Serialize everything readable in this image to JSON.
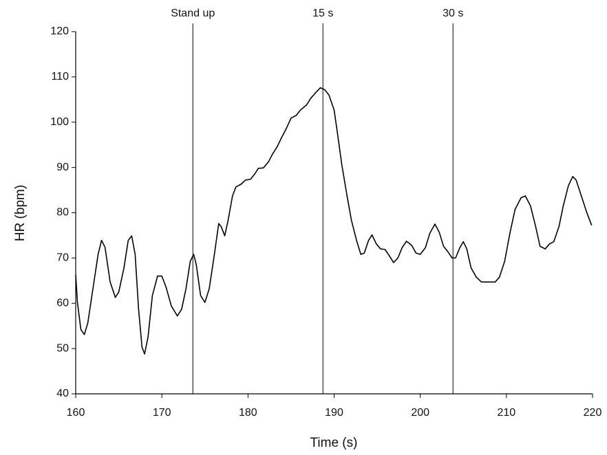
{
  "chart_data": {
    "type": "line",
    "x_label": "Time (s)",
    "y_label": "HR (bpm)",
    "xlim": [
      160,
      220
    ],
    "xticks": [
      160,
      170,
      180,
      190,
      200,
      210,
      220
    ],
    "ylim": [
      40,
      120
    ],
    "yticks": [
      40,
      50,
      60,
      70,
      80,
      90,
      100,
      110,
      120
    ],
    "grid": false,
    "annotations": [
      {
        "label": "Stand up",
        "x": 173.6
      },
      {
        "label": "15 s",
        "x": 188.7
      },
      {
        "label": "30 s",
        "x": 203.8
      }
    ],
    "series": [
      {
        "color": "#000000",
        "x": [
          160,
          160.2,
          160.6,
          161,
          161.4,
          162,
          162.6,
          163.0,
          163.4,
          164,
          164.6,
          165,
          165.6,
          166.1,
          166.5,
          166.9,
          167.3,
          167.7,
          168,
          168.4,
          168.9,
          169.5,
          170,
          170.5,
          171.1,
          171.8,
          172.3,
          172.8,
          173.3,
          173.7,
          174,
          174.5,
          175,
          175.5,
          176.1,
          176.6,
          176.9,
          177.3,
          177.7,
          178.2,
          178.6,
          179.2,
          179.7,
          180.3,
          180.8,
          181.2,
          181.8,
          182.4,
          182.8,
          183.4,
          183.9,
          184.4,
          185,
          185.6,
          186.1,
          186.8,
          187.3,
          187.9,
          188.4,
          188.9,
          189.4,
          190,
          190.4,
          190.9,
          191.5,
          192,
          192.6,
          193.1,
          193.5,
          194,
          194.4,
          194.9,
          195.4,
          195.9,
          196.3,
          196.9,
          197.4,
          197.9,
          198.4,
          199,
          199.5,
          200,
          200.6,
          201.1,
          201.7,
          202.2,
          202.7,
          203.2,
          203.7,
          204.1,
          204.6,
          205.0,
          205.4,
          205.9,
          206.5,
          207.1,
          207.9,
          208.7,
          209.2,
          209.8,
          210.4,
          211.0,
          211.7,
          212.2,
          212.8,
          213.4,
          213.9,
          214.5,
          215.0,
          215.5,
          216.1,
          216.6,
          217.2,
          217.7,
          218.1,
          218.7,
          219.3,
          219.9
        ],
        "values": [
          66.3,
          60.2,
          54.2,
          53.1,
          55.6,
          63.2,
          70.8,
          73.9,
          72.4,
          64.7,
          61.3,
          62.5,
          67.8,
          73.9,
          74.9,
          70.8,
          58.7,
          50.3,
          48.8,
          52.6,
          61.7,
          66.0,
          66.0,
          63.5,
          59.4,
          57.2,
          58.7,
          63.2,
          69.3,
          70.8,
          68.5,
          61.7,
          60.2,
          63.2,
          70.8,
          77.6,
          76.9,
          74.9,
          78.4,
          83.7,
          85.7,
          86.3,
          87.2,
          87.4,
          88.6,
          89.8,
          89.9,
          91.3,
          92.8,
          94.6,
          96.6,
          98.4,
          100.9,
          101.5,
          102.7,
          103.8,
          105.3,
          106.6,
          107.6,
          107.2,
          106.0,
          102.7,
          97.4,
          90.5,
          83.7,
          78.4,
          73.9,
          70.8,
          71.1,
          73.9,
          75.1,
          73.1,
          72.0,
          71.9,
          70.8,
          69.0,
          70.0,
          72.3,
          73.7,
          72.8,
          71.1,
          70.8,
          72.3,
          75.4,
          77.5,
          75.7,
          72.6,
          71.4,
          70.0,
          70.0,
          72.3,
          73.6,
          72.0,
          67.8,
          65.8,
          64.7,
          64.7,
          64.7,
          65.8,
          69.3,
          75.4,
          80.7,
          83.3,
          83.7,
          81.5,
          76.9,
          72.6,
          72.0,
          73.1,
          73.6,
          76.9,
          81.5,
          86.0,
          88.0,
          87.2,
          83.7,
          80.2,
          77.2
        ]
      }
    ]
  }
}
